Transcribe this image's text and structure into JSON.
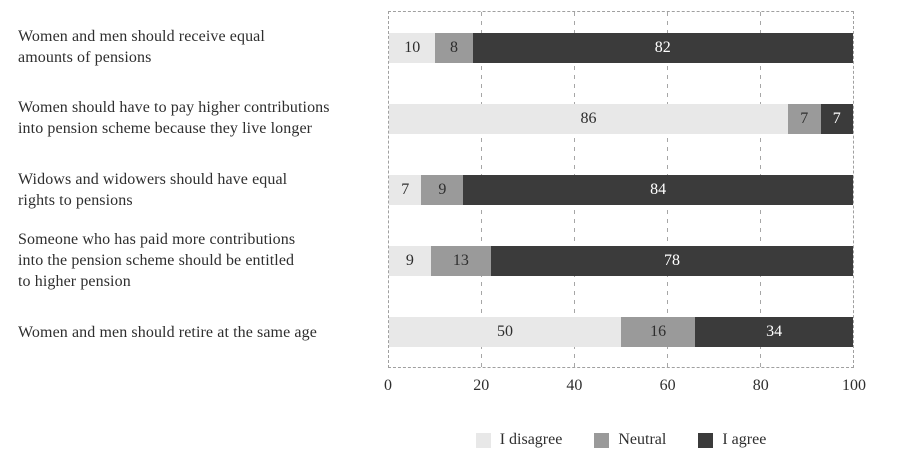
{
  "figure": {
    "background": "#ffffff",
    "text_color": "#2e2e2e",
    "grid_color": "#a0a0a0"
  },
  "chart_data": {
    "type": "bar",
    "orientation": "horizontal",
    "stacked": true,
    "title": "",
    "xlabel": "",
    "ylabel": "",
    "xlim": [
      0,
      100
    ],
    "x_ticks": [
      "0",
      "20",
      "40",
      "60",
      "80",
      "100"
    ],
    "grid": "vertical-dashed",
    "legend_position": "bottom",
    "categories": [
      "Women and men should receive equal\namounts of pensions",
      "Women should have to pay higher contributions\ninto pension scheme because they live longer",
      "Widows and widowers should have equal\nrights to pensions",
      "Someone who has paid more contributions\ninto the pension scheme should be entitled\nto higher pension",
      "Women and men should retire at the same age"
    ],
    "series": [
      {
        "name": "I disagree",
        "color": "#e8e8e8",
        "label_color": "#2e2e2e",
        "values": [
          10,
          86,
          7,
          9,
          50
        ]
      },
      {
        "name": "Neutral",
        "color": "#9a9a9a",
        "label_color": "#2e2e2e",
        "values": [
          8,
          7,
          9,
          13,
          16
        ]
      },
      {
        "name": "I agree",
        "color": "#3b3b3b",
        "label_color": "#ffffff",
        "values": [
          82,
          7,
          84,
          78,
          34
        ]
      }
    ]
  }
}
